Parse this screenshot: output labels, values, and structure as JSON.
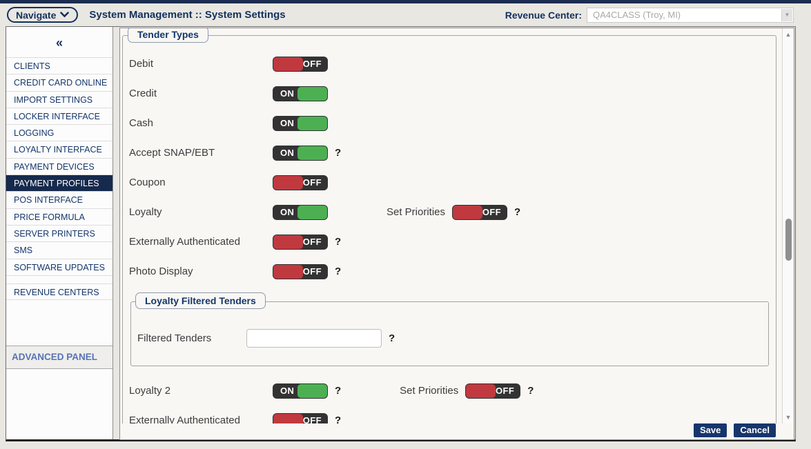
{
  "colors": {
    "navy": "#14305e",
    "toggle_on_green": "#4cb052",
    "toggle_off_red": "#c0393f",
    "toggle_track": "#333333",
    "selected_item_bg": "#152a4d",
    "button_bg": "#16356b"
  },
  "header": {
    "navigate_label": "Navigate",
    "title": "System Management :: System Settings",
    "revenue_center_label": "Revenue Center:",
    "revenue_center_value": "QA4CLASS (Troy, MI)",
    "dropdown_arrow": "▼"
  },
  "sidebar": {
    "collapse_icon": "«",
    "items": [
      {
        "label": "CLIENTS",
        "selected": false
      },
      {
        "label": "CREDIT CARD ONLINE",
        "selected": false
      },
      {
        "label": "IMPORT SETTINGS",
        "selected": false
      },
      {
        "label": "LOCKER INTERFACE",
        "selected": false
      },
      {
        "label": "LOGGING",
        "selected": false
      },
      {
        "label": "LOYALTY INTERFACE",
        "selected": false
      },
      {
        "label": "PAYMENT DEVICES",
        "selected": false
      },
      {
        "label": "PAYMENT PROFILES",
        "selected": true
      },
      {
        "label": "POS INTERFACE",
        "selected": false
      },
      {
        "label": "PRICE FORMULA",
        "selected": false
      },
      {
        "label": "SERVER PRINTERS",
        "selected": false
      },
      {
        "label": "SMS",
        "selected": false
      },
      {
        "label": "SOFTWARE UPDATES",
        "selected": false
      }
    ],
    "secondary_items": [
      {
        "label": "REVENUE CENTERS",
        "selected": false
      }
    ],
    "advanced_panel_label": "ADVANCED PANEL"
  },
  "main": {
    "help_glyph": "?",
    "tender_types": {
      "legend": "Tender Types",
      "rows": [
        {
          "label": "Debit",
          "state": "OFF",
          "help": false
        },
        {
          "label": "Credit",
          "state": "ON",
          "help": false
        },
        {
          "label": "Cash",
          "state": "ON",
          "help": false
        },
        {
          "label": "Accept SNAP/EBT",
          "state": "ON",
          "help": true
        },
        {
          "label": "Coupon",
          "state": "OFF",
          "help": false
        },
        {
          "label": "Loyalty",
          "state": "ON",
          "help": false,
          "secondary": {
            "label": "Set Priorities",
            "state": "OFF",
            "help": true
          }
        },
        {
          "label": "Externally Authenticated",
          "state": "OFF",
          "help": true
        },
        {
          "label": "Photo Display",
          "state": "OFF",
          "help": true
        }
      ],
      "loyalty_filtered": {
        "legend": "Loyalty Filtered Tenders",
        "field_label": "Filtered Tenders",
        "value": "",
        "help": true
      },
      "rows_after": [
        {
          "label": "Loyalty 2",
          "state": "ON",
          "help": true,
          "secondary": {
            "label": "Set Priorities",
            "state": "OFF",
            "help": true
          }
        },
        {
          "label": "Externally Authenticated",
          "state": "OFF",
          "help": true
        }
      ]
    }
  },
  "footer": {
    "save_label": "Save",
    "cancel_label": "Cancel"
  }
}
